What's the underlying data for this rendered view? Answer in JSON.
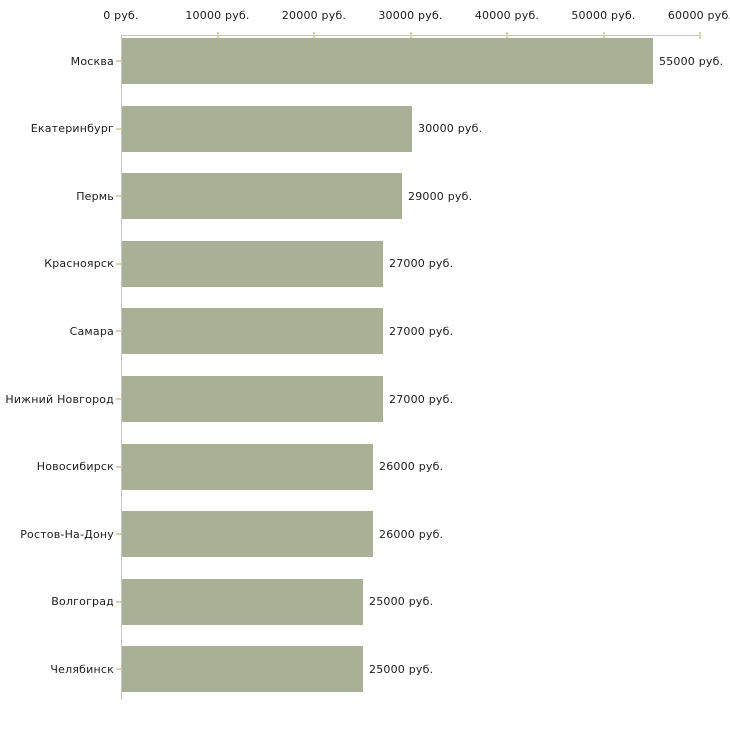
{
  "chart_data": {
    "type": "bar",
    "orientation": "horizontal",
    "title": "",
    "categories": [
      "Москва",
      "Екатеринбург",
      "Пермь",
      "Красноярск",
      "Самара",
      "Нижний Новгород",
      "Новосибирск",
      "Ростов-На-Дону",
      "Волгоград",
      "Челябинск"
    ],
    "values": [
      55000,
      30000,
      29000,
      27000,
      27000,
      27000,
      26000,
      26000,
      25000,
      25000
    ],
    "value_labels": [
      "55000 руб.",
      "30000 руб.",
      "29000 руб.",
      "27000 руб.",
      "27000 руб.",
      "27000 руб.",
      "26000 руб.",
      "26000 руб.",
      "25000 руб.",
      "25000 руб."
    ],
    "x_axis": {
      "position": "top",
      "min": 0,
      "max": 60000,
      "tick_interval": 10000,
      "tick_labels": [
        "0 руб.",
        "10000 руб.",
        "20000 руб.",
        "30000 руб.",
        "40000 руб.",
        "50000 руб.",
        "60000 руб."
      ]
    },
    "grid": false,
    "legend": false,
    "colors": {
      "bar_fill": "#aab096",
      "axis_line": "#c6c6c6",
      "tick_mark": "#d8d5ab",
      "text": "#1c1c1c",
      "background": "#ffffff"
    }
  }
}
